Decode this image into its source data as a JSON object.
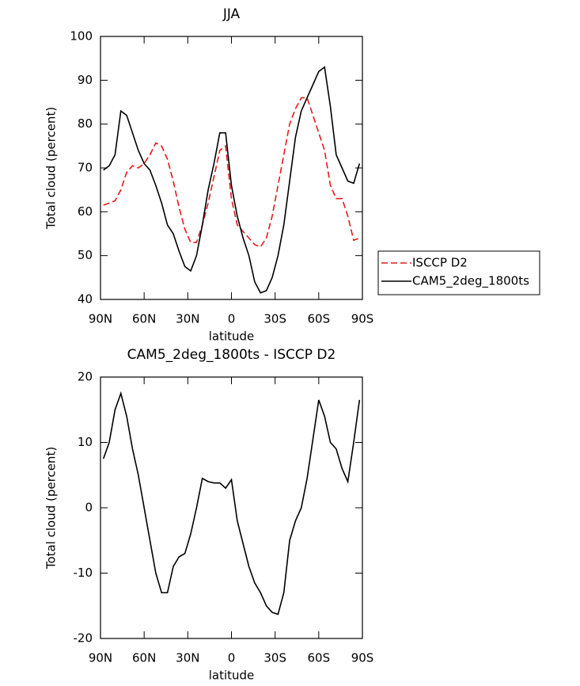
{
  "chart_data": [
    {
      "type": "line",
      "title": "JJA",
      "xlabel": "latitude",
      "ylabel": "Total cloud (percent)",
      "x": [
        88,
        84,
        80,
        76,
        72,
        68,
        64,
        60,
        56,
        52,
        48,
        44,
        40,
        36,
        32,
        28,
        24,
        20,
        16,
        12,
        8,
        4,
        0,
        -4,
        -8,
        -12,
        -16,
        -20,
        -24,
        -28,
        -32,
        -36,
        -40,
        -44,
        -48,
        -52,
        -56,
        -60,
        -64,
        -68,
        -72,
        -76,
        -80,
        -84,
        -88
      ],
      "series": [
        {
          "name": "ISCCP D2",
          "color": "#e41a1c",
          "dashed": true,
          "values": [
            61.5,
            62,
            62.5,
            65,
            69,
            70.5,
            70,
            71,
            73,
            75.7,
            75,
            72,
            67,
            61,
            56,
            53,
            53,
            57,
            62,
            68,
            74,
            75,
            63,
            57,
            55.5,
            54,
            52.5,
            52,
            54,
            59,
            66,
            73,
            80,
            83.5,
            86,
            86,
            82,
            78,
            74,
            66,
            63,
            63,
            59,
            53.5,
            54
          ]
        },
        {
          "name": "CAM5_2deg_1800ts",
          "color": "#000000",
          "dashed": false,
          "values": [
            69.5,
            70.5,
            73,
            83,
            82,
            78,
            74,
            71,
            69.5,
            66,
            62,
            57,
            55,
            51,
            47.5,
            46.5,
            50,
            57,
            65,
            71,
            78,
            78,
            66,
            59,
            54,
            50,
            44,
            41.5,
            42,
            45,
            50,
            57,
            67,
            77,
            83,
            86,
            89,
            92,
            93,
            84,
            73,
            70,
            67,
            66.5,
            71
          ]
        }
      ],
      "xlim": [
        90,
        -90
      ],
      "xticks": [
        {
          "value": 90,
          "label": "90N"
        },
        {
          "value": 60,
          "label": "60N"
        },
        {
          "value": 30,
          "label": "30N"
        },
        0,
        {
          "value": -30,
          "label": "30S"
        },
        {
          "value": -60,
          "label": "60S"
        },
        {
          "value": -90,
          "label": "90S"
        }
      ],
      "ylim": [
        40,
        100
      ],
      "yticks": [
        40,
        50,
        60,
        70,
        80,
        90,
        100
      ],
      "legend": "right"
    },
    {
      "type": "line",
      "title": "CAM5_2deg_1800ts - ISCCP D2",
      "xlabel": "latitude",
      "ylabel": "Total cloud (percent)",
      "x": [
        88,
        84,
        80,
        76,
        72,
        68,
        64,
        60,
        56,
        52,
        48,
        44,
        40,
        36,
        32,
        28,
        24,
        20,
        16,
        12,
        8,
        4,
        0,
        -4,
        -8,
        -12,
        -16,
        -20,
        -24,
        -28,
        -32,
        -36,
        -40,
        -44,
        -48,
        -52,
        -56,
        -60,
        -64,
        -68,
        -72,
        -76,
        -80,
        -84,
        -88
      ],
      "values": [
        7.5,
        10,
        15,
        17.5,
        14,
        9,
        5,
        0,
        -5,
        -10,
        -13,
        -13,
        -9,
        -7.5,
        -7,
        -4,
        0,
        4.5,
        4,
        3.8,
        3.8,
        3,
        4.3,
        -2,
        -5.5,
        -9,
        -11.5,
        -13,
        -15,
        -16,
        -16.3,
        -13,
        -5,
        -2,
        0,
        4.5,
        10.5,
        16.5,
        14,
        10,
        9,
        6,
        4,
        10,
        16.5
      ],
      "color": "#000000",
      "xlim": [
        90,
        -90
      ],
      "xticks": [
        {
          "value": 90,
          "label": "90N"
        },
        {
          "value": 60,
          "label": "60N"
        },
        {
          "value": 30,
          "label": "30N"
        },
        0,
        {
          "value": -30,
          "label": "30S"
        },
        {
          "value": -60,
          "label": "60S"
        },
        {
          "value": -90,
          "label": "90S"
        }
      ],
      "ylim": [
        -20,
        20
      ],
      "yticks": [
        -20,
        -10,
        0,
        10,
        20
      ]
    }
  ]
}
